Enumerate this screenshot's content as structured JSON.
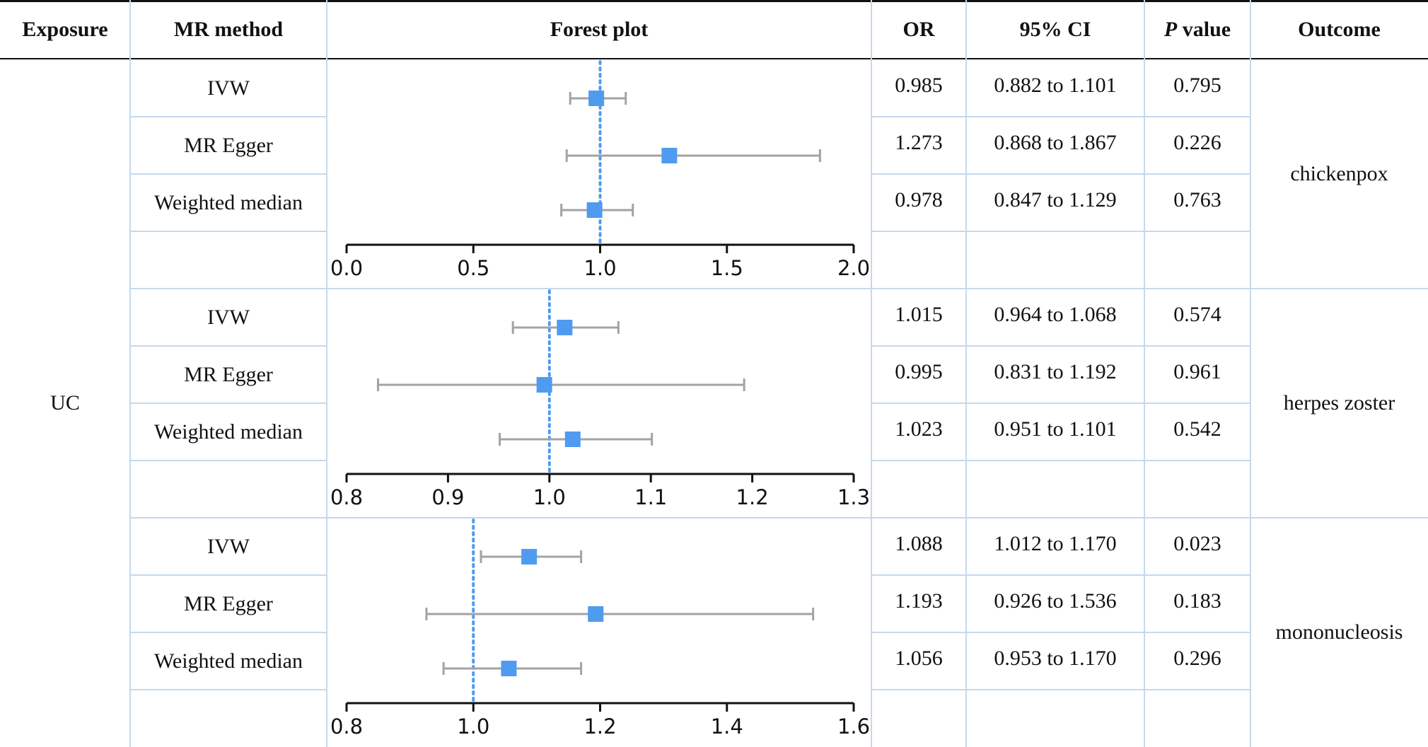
{
  "headers": {
    "exposure": "Exposure",
    "method": "MR method",
    "forest": "Forest plot",
    "or": "OR",
    "ci": "95% CI",
    "p_italic": "P",
    "p_rest": " value",
    "outcome": "Outcome"
  },
  "exposure": "UC",
  "colors": {
    "marker": "#4f9bf0",
    "whisker": "#a3a3a3",
    "refline": "#4f9bf0",
    "axis": "#111111"
  },
  "chart_data": [
    {
      "type": "forest",
      "outcome": "chickenpox",
      "xlim": [
        0.0,
        2.0
      ],
      "ticks": [
        0.0,
        0.5,
        1.0,
        1.5,
        2.0
      ],
      "tick_labels": [
        "0.0",
        "0.5",
        "1.0",
        "1.5",
        "2.0"
      ],
      "reference": 1.0,
      "rows": [
        {
          "method": "IVW",
          "or": 0.985,
          "lo": 0.882,
          "hi": 1.101,
          "or_text": "0.985",
          "ci_text": "0.882 to 1.101",
          "p_text": "0.795"
        },
        {
          "method": "MR Egger",
          "or": 1.273,
          "lo": 0.868,
          "hi": 1.867,
          "or_text": "1.273",
          "ci_text": "0.868 to 1.867",
          "p_text": "0.226"
        },
        {
          "method": "Weighted median",
          "or": 0.978,
          "lo": 0.847,
          "hi": 1.129,
          "or_text": "0.978",
          "ci_text": "0.847 to 1.129",
          "p_text": "0.763"
        }
      ]
    },
    {
      "type": "forest",
      "outcome": "herpes zoster",
      "xlim": [
        0.8,
        1.3
      ],
      "ticks": [
        0.8,
        0.9,
        1.0,
        1.1,
        1.2,
        1.3
      ],
      "tick_labels": [
        "0.8",
        "0.9",
        "1.0",
        "1.1",
        "1.2",
        "1.3"
      ],
      "reference": 1.0,
      "rows": [
        {
          "method": "IVW",
          "or": 1.015,
          "lo": 0.964,
          "hi": 1.068,
          "or_text": "1.015",
          "ci_text": "0.964 to 1.068",
          "p_text": "0.574"
        },
        {
          "method": "MR Egger",
          "or": 0.995,
          "lo": 0.831,
          "hi": 1.192,
          "or_text": "0.995",
          "ci_text": "0.831 to 1.192",
          "p_text": "0.961"
        },
        {
          "method": "Weighted median",
          "or": 1.023,
          "lo": 0.951,
          "hi": 1.101,
          "or_text": "1.023",
          "ci_text": "0.951 to 1.101",
          "p_text": "0.542"
        }
      ]
    },
    {
      "type": "forest",
      "outcome": "mononucleosis",
      "xlim": [
        0.8,
        1.6
      ],
      "ticks": [
        0.8,
        1.0,
        1.2,
        1.4,
        1.6
      ],
      "tick_labels": [
        "0.8",
        "1.0",
        "1.2",
        "1.4",
        "1.6"
      ],
      "reference": 1.0,
      "rows": [
        {
          "method": "IVW",
          "or": 1.088,
          "lo": 1.012,
          "hi": 1.17,
          "or_text": "1.088",
          "ci_text": "1.012 to 1.170",
          "p_text": "0.023"
        },
        {
          "method": "MR Egger",
          "or": 1.193,
          "lo": 0.926,
          "hi": 1.536,
          "or_text": "1.193",
          "ci_text": "0.926 to 1.536",
          "p_text": "0.183"
        },
        {
          "method": "Weighted median",
          "or": 1.056,
          "lo": 0.953,
          "hi": 1.17,
          "or_text": "1.056",
          "ci_text": "0.953 to 1.170",
          "p_text": "0.296"
        }
      ]
    }
  ]
}
